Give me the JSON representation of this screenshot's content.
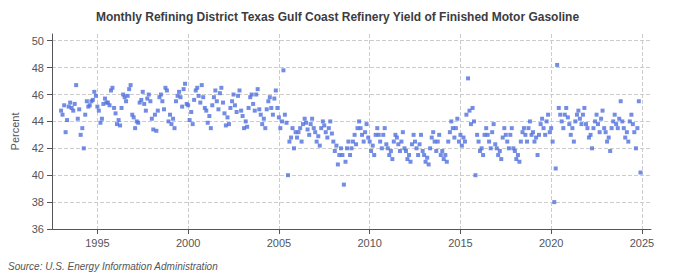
{
  "chart_data": {
    "type": "scatter",
    "title": "Monthly Refining District Texas Gulf Coast Refinery Yield of Finished Motor Gasoline",
    "ylabel": "Percent",
    "annotations": [
      "Source: U.S. Energy Information Administration"
    ],
    "marker": "square",
    "grid": true,
    "xlim": [
      1992.5,
      2025.5
    ],
    "xticks": [
      1995,
      2000,
      2005,
      2010,
      2015,
      2020,
      2025
    ],
    "ylim": [
      36,
      50.5
    ],
    "yticks": [
      36,
      38,
      40,
      42,
      44,
      46,
      48,
      50
    ],
    "x": [
      1993.0,
      1993.08,
      1993.17,
      1993.25,
      1993.33,
      1993.42,
      1993.5,
      1993.58,
      1993.67,
      1993.75,
      1993.83,
      1993.92,
      1994.0,
      1994.08,
      1994.17,
      1994.25,
      1994.33,
      1994.42,
      1994.5,
      1994.58,
      1994.67,
      1994.75,
      1994.83,
      1994.92,
      1995.0,
      1995.08,
      1995.17,
      1995.25,
      1995.33,
      1995.42,
      1995.5,
      1995.58,
      1995.67,
      1995.75,
      1995.83,
      1995.92,
      1996.0,
      1996.08,
      1996.17,
      1996.25,
      1996.33,
      1996.42,
      1996.5,
      1996.58,
      1996.67,
      1996.75,
      1996.83,
      1996.92,
      1997.0,
      1997.08,
      1997.17,
      1997.25,
      1997.33,
      1997.42,
      1997.5,
      1997.58,
      1997.67,
      1997.75,
      1997.83,
      1997.92,
      1998.0,
      1998.08,
      1998.17,
      1998.25,
      1998.33,
      1998.42,
      1998.5,
      1998.58,
      1998.67,
      1998.75,
      1998.83,
      1998.92,
      1999.0,
      1999.08,
      1999.17,
      1999.25,
      1999.33,
      1999.42,
      1999.5,
      1999.58,
      1999.67,
      1999.75,
      1999.83,
      1999.92,
      2000.0,
      2000.08,
      2000.17,
      2000.25,
      2000.33,
      2000.42,
      2000.5,
      2000.58,
      2000.67,
      2000.75,
      2000.83,
      2000.92,
      2001.0,
      2001.08,
      2001.17,
      2001.25,
      2001.33,
      2001.42,
      2001.5,
      2001.58,
      2001.67,
      2001.75,
      2001.83,
      2001.92,
      2002.0,
      2002.08,
      2002.17,
      2002.25,
      2002.33,
      2002.42,
      2002.5,
      2002.58,
      2002.67,
      2002.75,
      2002.83,
      2002.92,
      2003.0,
      2003.08,
      2003.17,
      2003.25,
      2003.33,
      2003.42,
      2003.5,
      2003.58,
      2003.67,
      2003.75,
      2003.83,
      2003.92,
      2004.0,
      2004.08,
      2004.17,
      2004.25,
      2004.33,
      2004.42,
      2004.5,
      2004.58,
      2004.67,
      2004.75,
      2004.83,
      2004.92,
      2005.0,
      2005.08,
      2005.17,
      2005.25,
      2005.33,
      2005.42,
      2005.5,
      2005.58,
      2005.67,
      2005.75,
      2005.83,
      2005.92,
      2006.0,
      2006.08,
      2006.17,
      2006.25,
      2006.33,
      2006.42,
      2006.5,
      2006.58,
      2006.67,
      2006.75,
      2006.83,
      2006.92,
      2007.0,
      2007.08,
      2007.17,
      2007.25,
      2007.33,
      2007.42,
      2007.5,
      2007.58,
      2007.67,
      2007.75,
      2007.83,
      2007.92,
      2008.0,
      2008.08,
      2008.17,
      2008.25,
      2008.33,
      2008.42,
      2008.5,
      2008.58,
      2008.67,
      2008.75,
      2008.83,
      2008.92,
      2009.0,
      2009.08,
      2009.17,
      2009.25,
      2009.33,
      2009.42,
      2009.5,
      2009.58,
      2009.67,
      2009.75,
      2009.83,
      2009.92,
      2010.0,
      2010.08,
      2010.17,
      2010.25,
      2010.33,
      2010.42,
      2010.5,
      2010.58,
      2010.67,
      2010.75,
      2010.83,
      2010.92,
      2011.0,
      2011.08,
      2011.17,
      2011.25,
      2011.33,
      2011.42,
      2011.5,
      2011.58,
      2011.67,
      2011.75,
      2011.83,
      2011.92,
      2012.0,
      2012.08,
      2012.17,
      2012.25,
      2012.33,
      2012.42,
      2012.5,
      2012.58,
      2012.67,
      2012.75,
      2012.83,
      2012.92,
      2013.0,
      2013.08,
      2013.17,
      2013.25,
      2013.33,
      2013.42,
      2013.5,
      2013.58,
      2013.67,
      2013.75,
      2013.83,
      2013.92,
      2014.0,
      2014.08,
      2014.17,
      2014.25,
      2014.33,
      2014.42,
      2014.5,
      2014.58,
      2014.67,
      2014.75,
      2014.83,
      2014.92,
      2015.0,
      2015.08,
      2015.17,
      2015.25,
      2015.33,
      2015.42,
      2015.5,
      2015.58,
      2015.67,
      2015.75,
      2015.83,
      2015.92,
      2016.0,
      2016.08,
      2016.17,
      2016.25,
      2016.33,
      2016.42,
      2016.5,
      2016.58,
      2016.67,
      2016.75,
      2016.83,
      2016.92,
      2017.0,
      2017.08,
      2017.17,
      2017.25,
      2017.33,
      2017.42,
      2017.5,
      2017.58,
      2017.67,
      2017.75,
      2017.83,
      2017.92,
      2018.0,
      2018.08,
      2018.17,
      2018.25,
      2018.33,
      2018.42,
      2018.5,
      2018.58,
      2018.67,
      2018.75,
      2018.83,
      2018.92,
      2019.0,
      2019.08,
      2019.17,
      2019.25,
      2019.33,
      2019.42,
      2019.5,
      2019.58,
      2019.67,
      2019.75,
      2019.83,
      2019.92,
      2020.0,
      2020.08,
      2020.17,
      2020.25,
      2020.33,
      2020.42,
      2020.5,
      2020.58,
      2020.67,
      2020.75,
      2020.83,
      2020.92,
      2021.0,
      2021.08,
      2021.17,
      2021.25,
      2021.33,
      2021.42,
      2021.5,
      2021.58,
      2021.67,
      2021.75,
      2021.83,
      2021.92,
      2022.0,
      2022.08,
      2022.17,
      2022.25,
      2022.33,
      2022.42,
      2022.5,
      2022.58,
      2022.67,
      2022.75,
      2022.83,
      2022.92,
      2023.0,
      2023.08,
      2023.17,
      2023.25,
      2023.33,
      2023.42,
      2023.5,
      2023.58,
      2023.67,
      2023.75,
      2023.83,
      2023.92,
      2024.0,
      2024.08,
      2024.17,
      2024.25,
      2024.33,
      2024.42,
      2024.5,
      2024.58,
      2024.67,
      2024.75,
      2024.83,
      2024.92
    ],
    "values": [
      44.8,
      44.5,
      45.2,
      43.2,
      44.1,
      45.1,
      45.4,
      45.0,
      44.8,
      45.3,
      46.7,
      44.2,
      44.9,
      43.0,
      43.5,
      42.0,
      44.5,
      45.5,
      45.1,
      45.2,
      45.5,
      45.6,
      46.2,
      45.9,
      45.1,
      44.8,
      43.9,
      44.2,
      45.3,
      45.7,
      45.4,
      45.4,
      45.2,
      46.3,
      46.5,
      45.0,
      44.6,
      43.8,
      44.1,
      43.7,
      45.0,
      46.0,
      45.8,
      45.5,
      45.9,
      46.4,
      46.7,
      44.5,
      44.3,
      43.5,
      44.0,
      43.9,
      45.4,
      45.6,
      46.2,
      45.3,
      44.8,
      45.7,
      46.0,
      45.5,
      44.2,
      43.4,
      44.5,
      43.3,
      44.8,
      45.8,
      46.0,
      45.5,
      44.9,
      46.5,
      46.3,
      44.0,
      44.5,
      43.8,
      44.2,
      43.5,
      45.5,
      45.9,
      46.2,
      45.8,
      45.1,
      46.4,
      46.8,
      45.3,
      45.2,
      44.1,
      44.7,
      43.8,
      45.6,
      46.3,
      46.5,
      45.9,
      45.4,
      46.7,
      45.8,
      45.0,
      44.8,
      43.9,
      44.4,
      43.5,
      45.2,
      45.8,
      46.3,
      45.5,
      44.9,
      46.1,
      46.5,
      45.4,
      44.6,
      43.7,
      44.3,
      43.8,
      45.0,
      45.5,
      46.0,
      45.2,
      44.7,
      45.9,
      46.3,
      44.8,
      44.4,
      43.5,
      44.0,
      43.6,
      45.0,
      45.8,
      46.0,
      45.3,
      44.8,
      46.0,
      46.4,
      44.9,
      44.5,
      43.8,
      44.2,
      43.5,
      44.9,
      45.5,
      45.8,
      45.0,
      44.5,
      45.7,
      46.3,
      45.0,
      44.3,
      43.5,
      44.0,
      47.8,
      44.5,
      43.9,
      40.0,
      42.5,
      42.8,
      43.5,
      42.0,
      43.2,
      42.8,
      43.2,
      43.5,
      42.5,
      43.8,
      44.2,
      43.9,
      43.4,
      43.0,
      43.8,
      44.2,
      43.5,
      43.2,
      42.5,
      42.9,
      42.2,
      43.5,
      44.0,
      43.7,
      43.2,
      42.8,
      43.5,
      44.0,
      43.1,
      42.5,
      41.8,
      42.2,
      40.8,
      41.5,
      42.0,
      41.5,
      39.3,
      41.0,
      42.0,
      42.5,
      41.5,
      42.0,
      42.5,
      43.0,
      42.3,
      43.5,
      44.0,
      43.5,
      43.0,
      42.5,
      43.2,
      43.8,
      42.8,
      42.5,
      41.8,
      42.2,
      41.5,
      43.0,
      43.5,
      43.0,
      42.5,
      42.0,
      43.0,
      43.5,
      42.3,
      42.0,
      41.5,
      41.8,
      41.2,
      42.5,
      43.0,
      42.8,
      42.3,
      41.8,
      42.5,
      43.2,
      42.0,
      41.8,
      41.2,
      41.5,
      41.0,
      42.3,
      43.0,
      42.5,
      42.0,
      41.5,
      42.3,
      43.0,
      41.8,
      41.5,
      41.0,
      41.3,
      40.8,
      42.0,
      42.8,
      43.2,
      42.5,
      41.8,
      42.5,
      43.0,
      41.5,
      41.8,
      41.2,
      41.5,
      41.0,
      42.5,
      43.2,
      44.0,
      43.5,
      42.8,
      43.5,
      44.2,
      42.5,
      43.0,
      42.2,
      42.8,
      42.5,
      44.5,
      47.2,
      44.8,
      43.8,
      45.0,
      44.0,
      40.0,
      43.0,
      42.5,
      41.8,
      42.0,
      41.5,
      43.0,
      43.5,
      43.0,
      42.5,
      42.0,
      43.2,
      43.8,
      42.3,
      42.0,
      41.5,
      41.8,
      41.2,
      42.8,
      43.5,
      43.0,
      42.5,
      42.0,
      43.0,
      43.5,
      42.0,
      41.8,
      41.2,
      41.5,
      41.0,
      42.5,
      43.2,
      43.5,
      43.0,
      42.5,
      43.5,
      44.0,
      43.0,
      43.2,
      42.5,
      42.8,
      41.5,
      43.0,
      43.8,
      44.2,
      43.5,
      43.0,
      44.0,
      44.5,
      43.2,
      43.5,
      42.5,
      38.0,
      40.5,
      48.2,
      45.0,
      44.5,
      44.0,
      43.5,
      44.5,
      45.0,
      44.3,
      43.8,
      43.0,
      43.5,
      42.5,
      44.0,
      44.5,
      44.8,
      44.2,
      43.8,
      44.5,
      45.0,
      43.8,
      43.5,
      42.8,
      43.0,
      42.0,
      43.5,
      44.0,
      44.5,
      43.8,
      43.2,
      44.2,
      44.8,
      43.5,
      43.2,
      42.5,
      42.8,
      41.8,
      43.5,
      44.0,
      44.5,
      43.8,
      43.5,
      44.2,
      45.5,
      44.0,
      43.5,
      42.8,
      43.2,
      42.5,
      44.0,
      44.5,
      43.8,
      43.2,
      42.0,
      43.5,
      45.5,
      40.2
    ]
  }
}
